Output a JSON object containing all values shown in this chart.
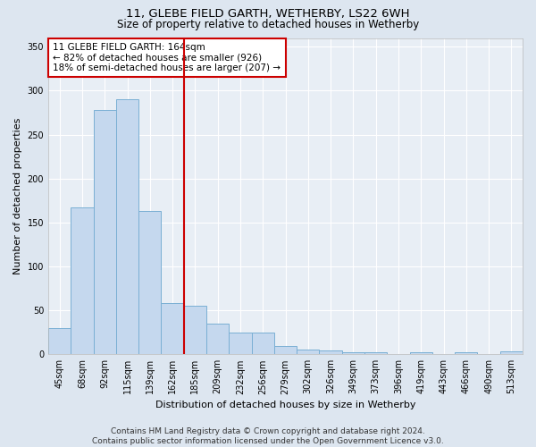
{
  "title": "11, GLEBE FIELD GARTH, WETHERBY, LS22 6WH",
  "subtitle": "Size of property relative to detached houses in Wetherby",
  "xlabel": "Distribution of detached houses by size in Wetherby",
  "ylabel": "Number of detached properties",
  "categories": [
    "45sqm",
    "68sqm",
    "92sqm",
    "115sqm",
    "139sqm",
    "162sqm",
    "185sqm",
    "209sqm",
    "232sqm",
    "256sqm",
    "279sqm",
    "302sqm",
    "326sqm",
    "349sqm",
    "373sqm",
    "396sqm",
    "419sqm",
    "443sqm",
    "466sqm",
    "490sqm",
    "513sqm"
  ],
  "values": [
    30,
    167,
    278,
    290,
    163,
    58,
    55,
    35,
    25,
    25,
    9,
    5,
    4,
    2,
    2,
    0,
    2,
    0,
    2,
    0,
    3
  ],
  "bar_color": "#c5d8ee",
  "bar_edge_color": "#7aafd4",
  "vline_color": "#cc0000",
  "vline_x": 5.5,
  "annotation_text": "11 GLEBE FIELD GARTH: 164sqm\n← 82% of detached houses are smaller (926)\n18% of semi-detached houses are larger (207) →",
  "annotation_box_color": "#ffffff",
  "annotation_box_edge_color": "#cc0000",
  "ylim": [
    0,
    360
  ],
  "yticks": [
    0,
    50,
    100,
    150,
    200,
    250,
    300,
    350
  ],
  "footer_text": "Contains HM Land Registry data © Crown copyright and database right 2024.\nContains public sector information licensed under the Open Government Licence v3.0.",
  "fig_background_color": "#dde6f0",
  "plot_background_color": "#e8eef5",
  "grid_color": "#ffffff",
  "title_fontsize": 9.5,
  "subtitle_fontsize": 8.5,
  "axis_label_fontsize": 8,
  "tick_fontsize": 7,
  "footer_fontsize": 6.5,
  "annotation_fontsize": 7.5
}
